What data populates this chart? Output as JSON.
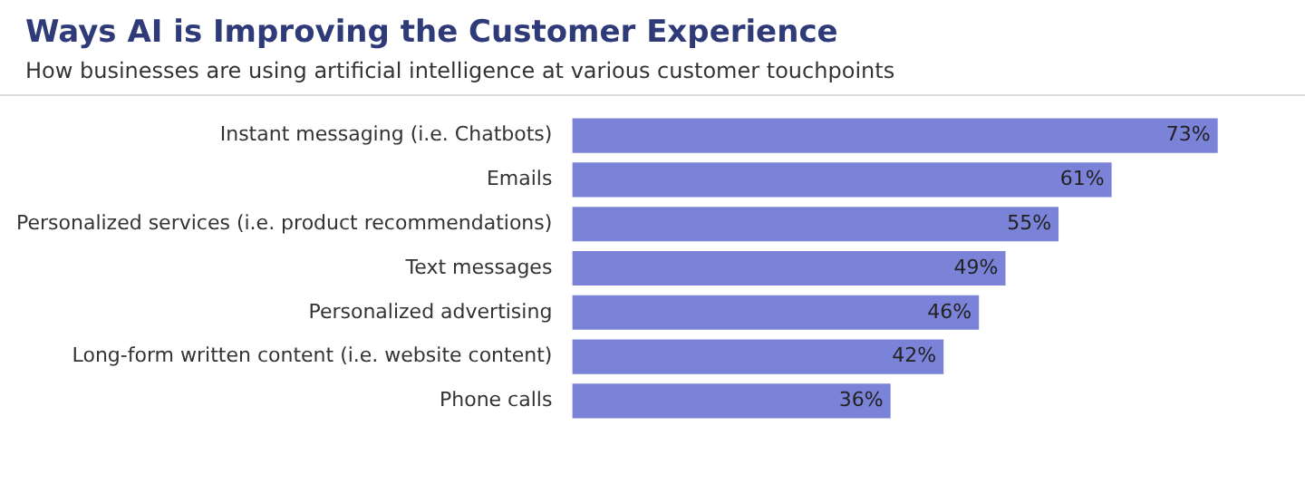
{
  "chart_data": {
    "type": "bar",
    "orientation": "horizontal",
    "title": "Ways AI is Improving the Customer Experience",
    "subtitle": "How businesses are using artificial intelligence at various customer touchpoints",
    "categories": [
      "Instant messaging (i.e. Chatbots)",
      "Emails",
      "Personalized services (i.e. product recommendations)",
      "Text messages",
      "Personalized advertising",
      "Long-form written content (i.e. website content)",
      "Phone calls"
    ],
    "values": [
      73,
      61,
      55,
      49,
      46,
      42,
      36
    ],
    "value_labels": [
      "73%",
      "61%",
      "55%",
      "49%",
      "46%",
      "42%",
      "36%"
    ],
    "color": "#7b83d8",
    "tick_labels": "y"
  }
}
